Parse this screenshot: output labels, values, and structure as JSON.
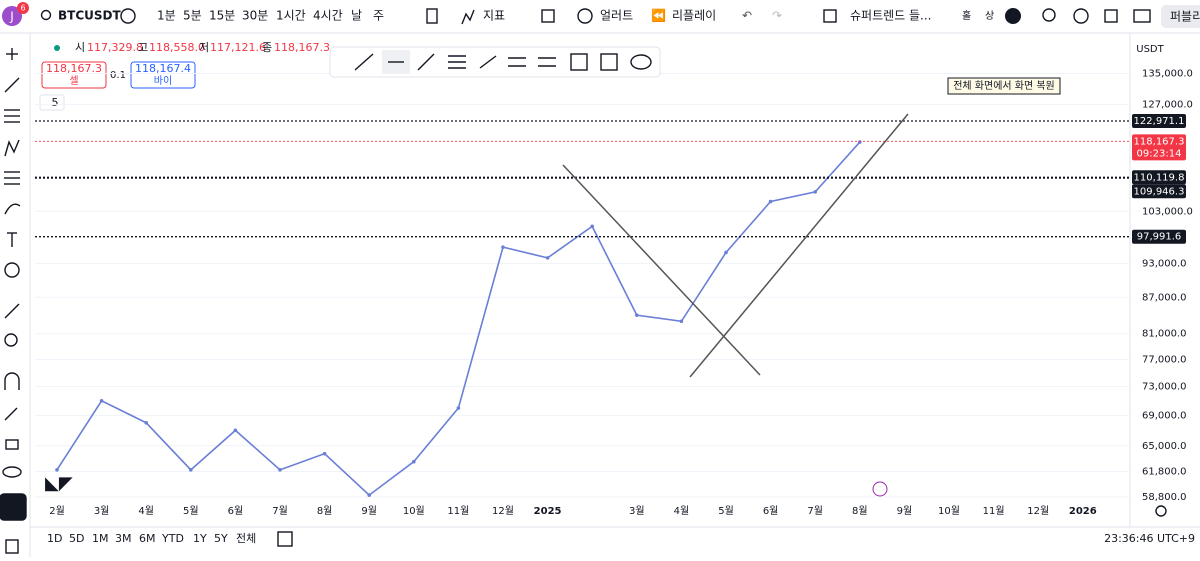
{
  "toolbar": {
    "avatar": "J",
    "badge": "6",
    "symbol": "BTCUSDT",
    "intervals": [
      "1분",
      "5분",
      "15분",
      "30분",
      "1시간",
      "4시간",
      "날",
      "주"
    ],
    "indicators": "지표",
    "alert": "얼러트",
    "replay": "리플레이",
    "template": "슈퍼트렌드 들...",
    "hold": "홀",
    "up": "상",
    "publish": "퍼블리"
  },
  "legend": {
    "open_label": "시",
    "open": "117,329.8",
    "high_label": "고",
    "high": "118,558.0",
    "low_label": "저",
    "low": "117,121.6",
    "close_label": "종",
    "close": "118,167.3",
    "sell_price": "118,167.3",
    "sell": "셀",
    "spread": "0.1",
    "buy_price": "118,167.4",
    "buy": "바이",
    "collapsed": "5"
  },
  "notice": "전체 화면에서 화면 복원",
  "chart_data": {
    "type": "line",
    "currency": "USDT",
    "log_scale": true,
    "categories": [
      "2월",
      "3월",
      "4월",
      "5월",
      "6월",
      "7월",
      "8월",
      "9월",
      "10월",
      "11월",
      "12월",
      "2025",
      null,
      "3월",
      "4월",
      "5월",
      "6월",
      "7월",
      "8월",
      "9월",
      "10월",
      "11월",
      "12월",
      "2026"
    ],
    "series": [
      {
        "name": "BTCUSDT",
        "color": "#6a7fd6",
        "values": [
          62000,
          71000,
          68000,
          62000,
          67000,
          62000,
          64000,
          59000,
          63000,
          70000,
          96000,
          94000,
          100000,
          84000,
          83000,
          95000,
          105000,
          107000,
          118000,
          null,
          null,
          null,
          null,
          null
        ]
      }
    ],
    "ylim": [
      57300,
      145600
    ],
    "yticks": [
      {
        "value": 135000,
        "label": "135,000.0"
      },
      {
        "value": 127000,
        "label": "127,000.0"
      },
      {
        "value": 103000,
        "label": "103,000.0"
      },
      {
        "value": 93000,
        "label": "93,000.0"
      },
      {
        "value": 87000,
        "label": "87,000.0"
      },
      {
        "value": 81000,
        "label": "81,000.0"
      },
      {
        "value": 77000,
        "label": "77,000.0"
      },
      {
        "value": 73000,
        "label": "73,000.0"
      },
      {
        "value": 69000,
        "label": "69,000.0"
      },
      {
        "value": 65000,
        "label": "65,000.0"
      },
      {
        "value": 61800,
        "label": "61,800.0"
      },
      {
        "value": 58800,
        "label": "58,800.0"
      }
    ],
    "price_lines": [
      {
        "value": 122971.1,
        "label": "122,971.1",
        "color": "#131722"
      },
      {
        "value": 118167.3,
        "label": "118,167.3",
        "color": "#f23645",
        "countdown": "09:23:14"
      },
      {
        "value": 110119.8,
        "label": "110,119.8",
        "color": "#131722"
      },
      {
        "value": 109946.3,
        "label": "109,946.3",
        "color": "#131722"
      },
      {
        "value": 97991.6,
        "label": "97,991.6",
        "color": "#131722"
      }
    ]
  },
  "bottom_bar": {
    "ranges": [
      "1D",
      "5D",
      "1M",
      "3M",
      "6M",
      "YTD",
      "1Y",
      "5Y",
      "전체"
    ],
    "clock": "23:36:46 UTC+9"
  }
}
